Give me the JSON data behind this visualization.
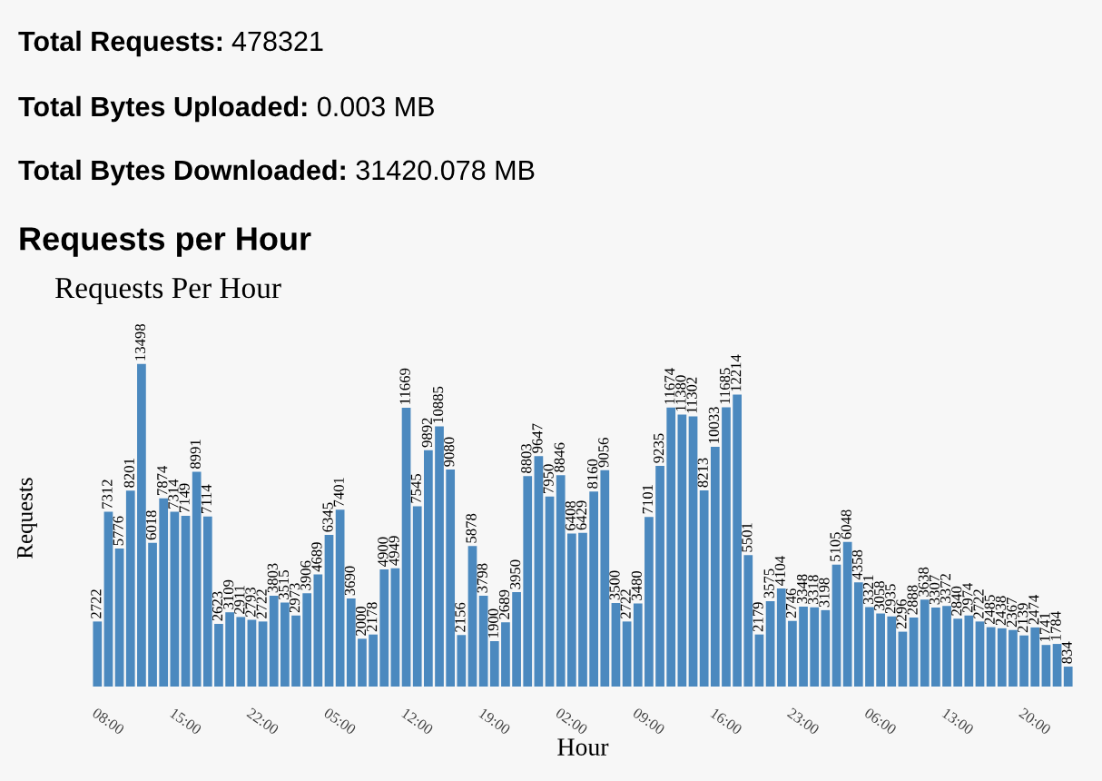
{
  "chart_data": {
    "type": "bar",
    "title": "Requests Per Hour",
    "xlabel": "Hour",
    "ylabel": "Requests",
    "annotations": [
      "Total Requests: 478321",
      "Total Bytes Uploaded: 0.003 MB",
      "Total Bytes Downloaded: 31420.078 MB",
      "Requests per Hour"
    ],
    "categories": [
      "08:00",
      null,
      null,
      null,
      null,
      null,
      null,
      "15:00",
      null,
      null,
      null,
      null,
      null,
      null,
      "22:00",
      null,
      null,
      null,
      null,
      null,
      null,
      "05:00",
      null,
      null,
      null,
      null,
      null,
      null,
      "12:00",
      null,
      null,
      null,
      null,
      null,
      null,
      "19:00",
      null,
      null,
      null,
      null,
      null,
      null,
      "02:00",
      null,
      null,
      null,
      null,
      null,
      null,
      "09:00",
      null,
      null,
      null,
      null,
      null,
      null,
      "16:00",
      null,
      null,
      null,
      null,
      null,
      null,
      "23:00",
      null,
      null,
      null,
      null,
      null,
      null,
      "06:00",
      null,
      null,
      null,
      null,
      null,
      null,
      "13:00",
      null,
      null,
      null,
      null,
      null,
      null,
      "20:00",
      null,
      null,
      null,
      null
    ],
    "values": [
      2722,
      7312,
      5776,
      8201,
      13498,
      6018,
      7874,
      7314,
      7149,
      8991,
      7114,
      2623,
      3109,
      2911,
      2793,
      2722,
      3803,
      3515,
      2973,
      3906,
      4689,
      6345,
      7401,
      3690,
      2000,
      2178,
      4900,
      4949,
      11669,
      7545,
      9892,
      10885,
      9080,
      2156,
      5878,
      3798,
      1900,
      2689,
      3950,
      8803,
      9647,
      7950,
      8846,
      6408,
      6429,
      8160,
      9056,
      3500,
      2722,
      3480,
      7101,
      9235,
      11674,
      11380,
      11302,
      8213,
      10033,
      11685,
      12214,
      5501,
      2179,
      3575,
      4104,
      2746,
      3348,
      3318,
      3198,
      5105,
      6048,
      4358,
      3321,
      3058,
      2935,
      2296,
      2888,
      3638,
      3307,
      3372,
      2840,
      2974,
      2722,
      2485,
      2438,
      2367,
      2139,
      2474,
      1741,
      1784,
      834
    ],
    "color": "#4b89bf",
    "tick_labels": "x",
    "data_labels": true,
    "grid": false,
    "legend": false
  }
}
